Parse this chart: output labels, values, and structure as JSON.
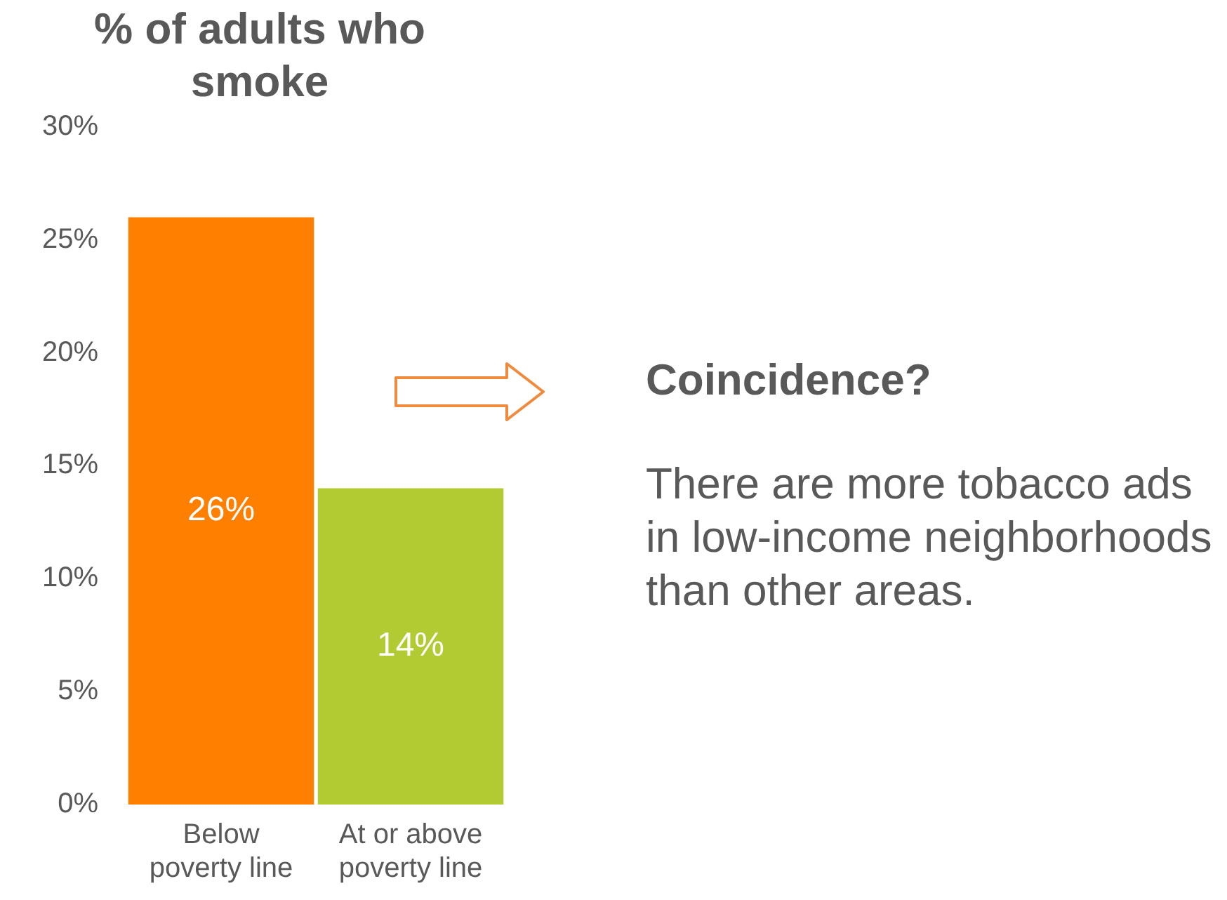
{
  "chart_data": {
    "type": "bar",
    "title": "% of adults who smoke",
    "categories": [
      "Below poverty line",
      "At or above poverty line"
    ],
    "values": [
      26,
      14
    ],
    "colors": [
      "#ff7f00",
      "#b2cb33"
    ],
    "value_labels": [
      "26%",
      "14%"
    ],
    "ylim": [
      0,
      30
    ],
    "yticks": [
      {
        "value": 0,
        "label": "0%"
      },
      {
        "value": 5,
        "label": "5%"
      },
      {
        "value": 10,
        "label": "10%"
      },
      {
        "value": 15,
        "label": "15%"
      },
      {
        "value": 20,
        "label": "20%"
      },
      {
        "value": 25,
        "label": "25%"
      },
      {
        "value": 30,
        "label": "30%"
      }
    ],
    "grid": false,
    "legend": false,
    "annotations": [
      "Coincidence?",
      "There are more tobacco ads in low-income neighborhoods than other areas."
    ]
  }
}
